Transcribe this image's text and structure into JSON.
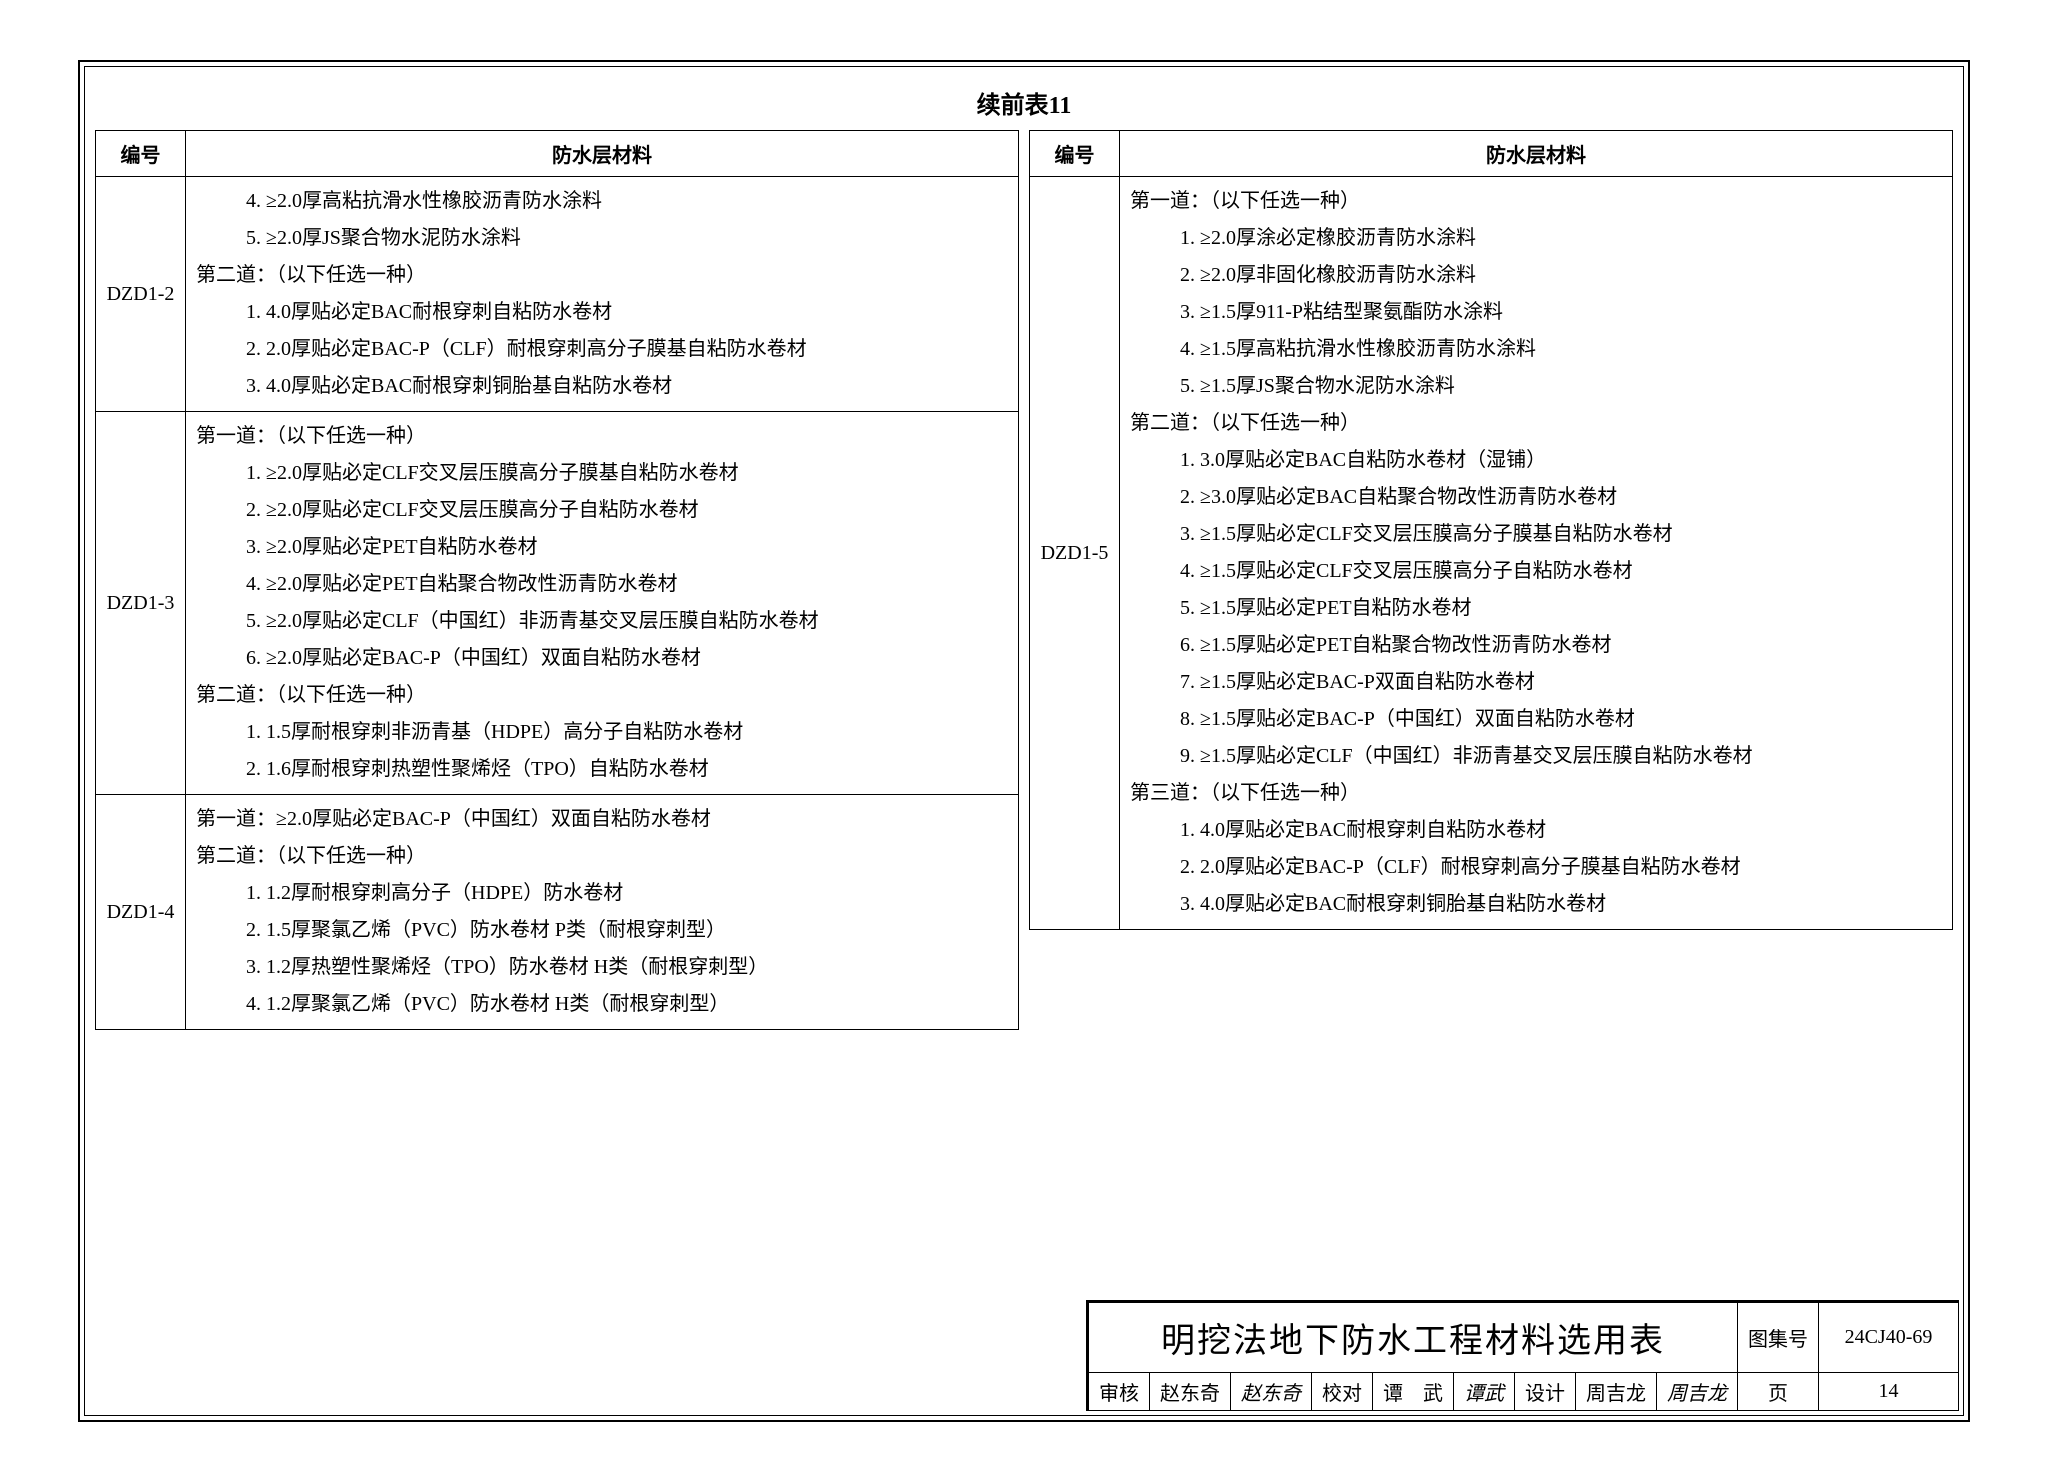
{
  "page_title": "续前表11",
  "headers": {
    "code": "编号",
    "material": "防水层材料"
  },
  "left_rows": [
    {
      "code": "DZD1-2",
      "lines": [
        {
          "t": "4. ≥2.0厚高粘抗滑水性橡胶沥青防水涂料",
          "cls": "indent2"
        },
        {
          "t": "5. ≥2.0厚JS聚合物水泥防水涂料",
          "cls": "indent2"
        },
        {
          "t": "第二道：（以下任选一种）",
          "cls": "indent1"
        },
        {
          "t": "1. 4.0厚贴必定BAC耐根穿刺自粘防水卷材",
          "cls": "indent2"
        },
        {
          "t": "2. 2.0厚贴必定BAC-P（CLF）耐根穿刺高分子膜基自粘防水卷材",
          "cls": "indent2"
        },
        {
          "t": "3. 4.0厚贴必定BAC耐根穿刺铜胎基自粘防水卷材",
          "cls": "indent2"
        }
      ]
    },
    {
      "code": "DZD1-3",
      "lines": [
        {
          "t": "第一道：（以下任选一种）",
          "cls": "indent1"
        },
        {
          "t": "1. ≥2.0厚贴必定CLF交叉层压膜高分子膜基自粘防水卷材",
          "cls": "indent2"
        },
        {
          "t": "2. ≥2.0厚贴必定CLF交叉层压膜高分子自粘防水卷材",
          "cls": "indent2"
        },
        {
          "t": "3. ≥2.0厚贴必定PET自粘防水卷材",
          "cls": "indent2"
        },
        {
          "t": "4. ≥2.0厚贴必定PET自粘聚合物改性沥青防水卷材",
          "cls": "indent2"
        },
        {
          "t": "5. ≥2.0厚贴必定CLF（中国红）非沥青基交叉层压膜自粘防水卷材",
          "cls": "indent2"
        },
        {
          "t": "6. ≥2.0厚贴必定BAC-P（中国红）双面自粘防水卷材",
          "cls": "indent2"
        },
        {
          "t": "第二道：（以下任选一种）",
          "cls": "indent1"
        },
        {
          "t": "1. 1.5厚耐根穿刺非沥青基（HDPE）高分子自粘防水卷材",
          "cls": "indent2"
        },
        {
          "t": "2. 1.6厚耐根穿刺热塑性聚烯烃（TPO）自粘防水卷材",
          "cls": "indent2"
        }
      ]
    },
    {
      "code": "DZD1-4",
      "lines": [
        {
          "t": "第一道：≥2.0厚贴必定BAC-P（中国红）双面自粘防水卷材",
          "cls": "indent1"
        },
        {
          "t": "第二道：（以下任选一种）",
          "cls": "indent1"
        },
        {
          "t": "1. 1.2厚耐根穿刺高分子（HDPE）防水卷材",
          "cls": "indent2"
        },
        {
          "t": "2. 1.5厚聚氯乙烯（PVC）防水卷材 P类（耐根穿刺型）",
          "cls": "indent2"
        },
        {
          "t": "3. 1.2厚热塑性聚烯烃（TPO）防水卷材 H类（耐根穿刺型）",
          "cls": "indent2"
        },
        {
          "t": "4. 1.2厚聚氯乙烯（PVC）防水卷材 H类（耐根穿刺型）",
          "cls": "indent2"
        }
      ]
    }
  ],
  "right_rows": [
    {
      "code": "DZD1-5",
      "lines": [
        {
          "t": "第一道：（以下任选一种）",
          "cls": "indent1"
        },
        {
          "t": "1. ≥2.0厚涂必定橡胶沥青防水涂料",
          "cls": "indent2"
        },
        {
          "t": "2. ≥2.0厚非固化橡胶沥青防水涂料",
          "cls": "indent2"
        },
        {
          "t": "3. ≥1.5厚911-P粘结型聚氨酯防水涂料",
          "cls": "indent2"
        },
        {
          "t": "4. ≥1.5厚高粘抗滑水性橡胶沥青防水涂料",
          "cls": "indent2"
        },
        {
          "t": "5. ≥1.5厚JS聚合物水泥防水涂料",
          "cls": "indent2"
        },
        {
          "t": "第二道：（以下任选一种）",
          "cls": "indent1"
        },
        {
          "t": "1. 3.0厚贴必定BAC自粘防水卷材（湿铺）",
          "cls": "indent2"
        },
        {
          "t": "2. ≥3.0厚贴必定BAC自粘聚合物改性沥青防水卷材",
          "cls": "indent2"
        },
        {
          "t": "3. ≥1.5厚贴必定CLF交叉层压膜高分子膜基自粘防水卷材",
          "cls": "indent2"
        },
        {
          "t": "4. ≥1.5厚贴必定CLF交叉层压膜高分子自粘防水卷材",
          "cls": "indent2"
        },
        {
          "t": "5. ≥1.5厚贴必定PET自粘防水卷材",
          "cls": "indent2"
        },
        {
          "t": "6. ≥1.5厚贴必定PET自粘聚合物改性沥青防水卷材",
          "cls": "indent2"
        },
        {
          "t": "7. ≥1.5厚贴必定BAC-P双面自粘防水卷材",
          "cls": "indent2"
        },
        {
          "t": "8. ≥1.5厚贴必定BAC-P（中国红）双面自粘防水卷材",
          "cls": "indent2"
        },
        {
          "t": "9. ≥1.5厚贴必定CLF（中国红）非沥青基交叉层压膜自粘防水卷材",
          "cls": "indent2"
        },
        {
          "t": "第三道：（以下任选一种）",
          "cls": "indent1"
        },
        {
          "t": "1. 4.0厚贴必定BAC耐根穿刺自粘防水卷材",
          "cls": "indent2"
        },
        {
          "t": "2. 2.0厚贴必定BAC-P（CLF）耐根穿刺高分子膜基自粘防水卷材",
          "cls": "indent2"
        },
        {
          "t": "3. 4.0厚贴必定BAC耐根穿刺铜胎基自粘防水卷材",
          "cls": "indent2"
        }
      ]
    }
  ],
  "titleblock": {
    "main_title": "明挖法地下防水工程材料选用表",
    "atlas_label": "图集号",
    "atlas_value": "24CJ40-69",
    "review_label": "审核",
    "review_name": "赵东奇",
    "review_sig": "赵东奇",
    "proof_label": "校对",
    "proof_name": "谭　武",
    "proof_sig": "谭武",
    "design_label": "设计",
    "design_name": "周吉龙",
    "design_sig": "周吉龙",
    "page_label": "页",
    "page_value": "14"
  },
  "style": {
    "border_color": "#000000",
    "bg_color": "#ffffff",
    "body_fontsize": 20,
    "title_fontsize": 24,
    "tb_title_fontsize": 34,
    "line_height": 1.85
  }
}
